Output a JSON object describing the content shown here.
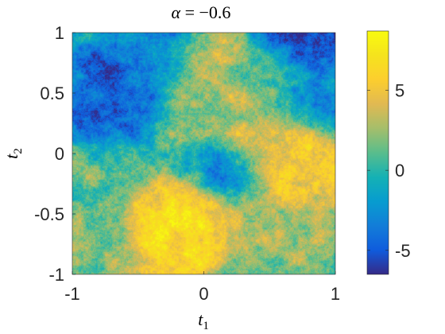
{
  "chart_data": {
    "type": "heatmap",
    "title": "α = −0.6",
    "xlabel": {
      "base": "t",
      "sub": "1"
    },
    "ylabel": {
      "base": "t",
      "sub": "2"
    },
    "xlim": [
      -1,
      1
    ],
    "ylim": [
      -1,
      1
    ],
    "xticks": [
      -1,
      0,
      1
    ],
    "yticks": [
      1,
      0.5,
      0,
      -0.5,
      -1
    ],
    "xtick_labels": [
      "-1",
      "0",
      "1"
    ],
    "ytick_labels": [
      "1",
      "0.5",
      "0",
      "-0.5",
      "-1"
    ],
    "colorbar": {
      "range": [
        -6.5,
        8.7
      ],
      "ticks": [
        5,
        0,
        -5
      ],
      "tick_labels": [
        "5",
        "0",
        "-5"
      ],
      "colormap": "parula"
    },
    "field_features": [
      {
        "t1": -0.25,
        "t2": -0.6,
        "value": 7.5
      },
      {
        "t1": -0.15,
        "t2": -0.55,
        "value": 6.5
      },
      {
        "t1": 0.4,
        "t2": 0.05,
        "value": 5.5
      },
      {
        "t1": 0.75,
        "t2": -0.05,
        "value": 6.0
      },
      {
        "t1": 0.2,
        "t2": 0.3,
        "value": 3.5
      },
      {
        "t1": 0.5,
        "t2": -0.6,
        "value": 3.0
      },
      {
        "t1": -0.6,
        "t2": 0.55,
        "value": -5.0
      },
      {
        "t1": -0.7,
        "t2": 0.35,
        "value": -4.0
      },
      {
        "t1": -0.35,
        "t2": 0.75,
        "value": -3.0
      },
      {
        "t1": 0.75,
        "t2": 0.9,
        "value": -5.5
      },
      {
        "t1": 0.15,
        "t2": -0.1,
        "value": -3.0
      },
      {
        "t1": 0.55,
        "t2": 0.6,
        "value": 0.0
      },
      {
        "t1": -0.75,
        "t2": -0.2,
        "value": 1.5
      },
      {
        "t1": -0.8,
        "t2": -0.75,
        "value": 2.0
      },
      {
        "t1": 0.9,
        "t2": 0.45,
        "value": -2.0
      },
      {
        "t1": 0.05,
        "t2": 0.75,
        "value": 3.0
      },
      {
        "t1": -0.1,
        "t2": 0.4,
        "value": 2.0
      }
    ]
  }
}
